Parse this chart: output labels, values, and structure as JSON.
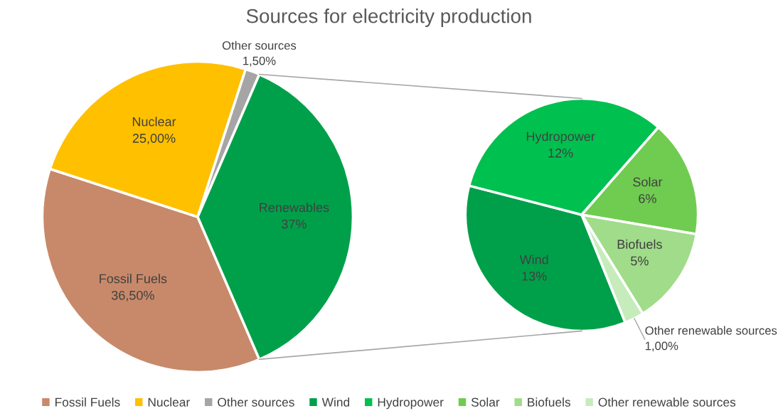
{
  "chart_data": [
    {
      "type": "pie",
      "title": "Sources for electricity production",
      "categories": [
        "Fossil Fuels",
        "Nuclear",
        "Other sources",
        "Renewables"
      ],
      "values": [
        36.5,
        25,
        1.5,
        37
      ],
      "value_labels": [
        "36,50%",
        "25,00%",
        "1,50%",
        "37%"
      ],
      "colors": [
        "#c8896a",
        "#ffc000",
        "#a5a5a5",
        "#00a04a"
      ],
      "legend": "bottom"
    },
    {
      "type": "pie",
      "categories": [
        "Wind",
        "Hydropower",
        "Solar",
        "Biofuels",
        "Other renewable sources"
      ],
      "values": [
        13,
        12,
        6,
        5,
        1
      ],
      "value_labels": [
        "13%",
        "12%",
        "6%",
        "5%",
        "1,00%"
      ],
      "colors": [
        "#00a04a",
        "#00c050",
        "#70cc50",
        "#a0dc8a",
        "#c6ecbc"
      ],
      "legend": "bottom"
    }
  ]
}
